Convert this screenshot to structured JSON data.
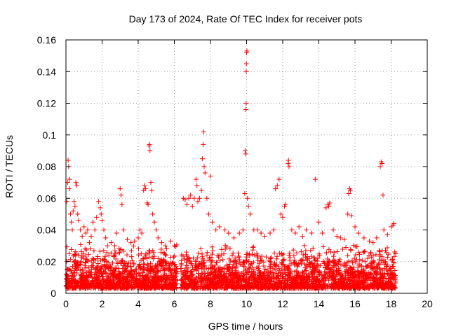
{
  "chart_data": {
    "type": "scatter",
    "title": "Day 173 of 2024, Rate Of TEC Index for receiver pots",
    "xlabel": "GPS time / hours",
    "ylabel": "ROTI / TECUs",
    "xlim": [
      0,
      20
    ],
    "ylim": [
      0,
      0.16
    ],
    "x_ticks": [
      0,
      2,
      4,
      6,
      8,
      10,
      12,
      14,
      16,
      18,
      20
    ],
    "y_ticks": [
      0,
      0.02,
      0.04,
      0.06,
      0.08,
      0.1,
      0.12,
      0.14,
      0.16
    ],
    "x_tick_labels": [
      "0",
      "2",
      "4",
      "6",
      "8",
      "10",
      "12",
      "14",
      "16",
      "18",
      "20"
    ],
    "y_tick_labels": [
      "0",
      "0.02",
      "0.04",
      "0.06",
      "0.08",
      "0.1",
      "0.12",
      "0.14",
      "0.16"
    ],
    "grid": true,
    "marker": "+",
    "color": "#ff0000",
    "data_gap_hours": [
      6.15,
      6.35
    ],
    "dense_band": {
      "x_range": [
        0,
        18.25
      ],
      "y_range": [
        0.003,
        0.03
      ]
    },
    "series": [
      {
        "name": "ROTI",
        "points": [
          [
            0.05,
            0.058
          ],
          [
            0.1,
            0.07
          ],
          [
            0.12,
            0.084
          ],
          [
            0.15,
            0.08
          ],
          [
            0.18,
            0.066
          ],
          [
            0.2,
            0.072
          ],
          [
            0.25,
            0.05
          ],
          [
            0.3,
            0.045
          ],
          [
            0.35,
            0.04
          ],
          [
            0.4,
            0.052
          ],
          [
            0.45,
            0.058
          ],
          [
            0.5,
            0.055
          ],
          [
            0.55,
            0.07
          ],
          [
            0.6,
            0.068
          ],
          [
            0.65,
            0.05
          ],
          [
            0.7,
            0.046
          ],
          [
            0.8,
            0.04
          ],
          [
            0.9,
            0.036
          ],
          [
            1.0,
            0.042
          ],
          [
            1.1,
            0.038
          ],
          [
            1.2,
            0.04
          ],
          [
            1.3,
            0.032
          ],
          [
            1.4,
            0.036
          ],
          [
            1.5,
            0.045
          ],
          [
            1.6,
            0.04
          ],
          [
            1.7,
            0.048
          ],
          [
            1.8,
            0.058
          ],
          [
            1.9,
            0.054
          ],
          [
            1.95,
            0.05
          ],
          [
            2.0,
            0.046
          ],
          [
            2.1,
            0.04
          ],
          [
            2.2,
            0.035
          ],
          [
            2.3,
            0.03
          ],
          [
            2.5,
            0.032
          ],
          [
            2.7,
            0.03
          ],
          [
            2.8,
            0.038
          ],
          [
            3.0,
            0.066
          ],
          [
            3.05,
            0.062
          ],
          [
            3.1,
            0.056
          ],
          [
            3.2,
            0.04
          ],
          [
            3.4,
            0.034
          ],
          [
            3.6,
            0.032
          ],
          [
            3.8,
            0.033
          ],
          [
            4.0,
            0.035
          ],
          [
            4.1,
            0.04
          ],
          [
            4.2,
            0.038
          ],
          [
            4.3,
            0.065
          ],
          [
            4.35,
            0.068
          ],
          [
            4.4,
            0.066
          ],
          [
            4.5,
            0.057
          ],
          [
            4.55,
            0.056
          ],
          [
            4.6,
            0.093
          ],
          [
            4.62,
            0.094
          ],
          [
            4.65,
            0.09
          ],
          [
            4.7,
            0.07
          ],
          [
            4.75,
            0.065
          ],
          [
            4.8,
            0.05
          ],
          [
            4.9,
            0.045
          ],
          [
            5.0,
            0.04
          ],
          [
            5.1,
            0.035
          ],
          [
            5.3,
            0.032
          ],
          [
            5.5,
            0.03
          ],
          [
            5.8,
            0.033
          ],
          [
            6.0,
            0.03
          ],
          [
            6.5,
            0.06
          ],
          [
            6.6,
            0.059
          ],
          [
            6.7,
            0.056
          ],
          [
            6.8,
            0.06
          ],
          [
            6.9,
            0.062
          ],
          [
            7.0,
            0.055
          ],
          [
            7.1,
            0.06
          ],
          [
            7.2,
            0.072
          ],
          [
            7.25,
            0.068
          ],
          [
            7.3,
            0.058
          ],
          [
            7.4,
            0.06
          ],
          [
            7.5,
            0.065
          ],
          [
            7.55,
            0.085
          ],
          [
            7.6,
            0.094
          ],
          [
            7.62,
            0.102
          ],
          [
            7.65,
            0.08
          ],
          [
            7.7,
            0.076
          ],
          [
            7.8,
            0.06
          ],
          [
            7.9,
            0.05
          ],
          [
            8.0,
            0.074
          ],
          [
            8.1,
            0.045
          ],
          [
            8.3,
            0.04
          ],
          [
            8.5,
            0.042
          ],
          [
            8.8,
            0.04
          ],
          [
            9.0,
            0.038
          ],
          [
            9.3,
            0.035
          ],
          [
            9.6,
            0.038
          ],
          [
            9.8,
            0.04
          ],
          [
            9.9,
            0.063
          ],
          [
            9.92,
            0.09
          ],
          [
            9.95,
            0.088
          ],
          [
            9.96,
            0.116
          ],
          [
            9.97,
            0.12
          ],
          [
            9.98,
            0.14
          ],
          [
            9.99,
            0.145
          ],
          [
            10.0,
            0.152
          ],
          [
            10.02,
            0.153
          ],
          [
            10.05,
            0.06
          ],
          [
            10.1,
            0.055
          ],
          [
            10.2,
            0.05
          ],
          [
            10.4,
            0.04
          ],
          [
            10.6,
            0.04
          ],
          [
            10.8,
            0.038
          ],
          [
            11.0,
            0.036
          ],
          [
            11.3,
            0.038
          ],
          [
            11.5,
            0.04
          ],
          [
            11.6,
            0.066
          ],
          [
            11.7,
            0.068
          ],
          [
            11.8,
            0.072
          ],
          [
            11.9,
            0.05
          ],
          [
            12.0,
            0.048
          ],
          [
            12.1,
            0.055
          ],
          [
            12.15,
            0.056
          ],
          [
            12.3,
            0.082
          ],
          [
            12.32,
            0.084
          ],
          [
            12.35,
            0.08
          ],
          [
            12.5,
            0.04
          ],
          [
            12.7,
            0.038
          ],
          [
            12.9,
            0.042
          ],
          [
            13.1,
            0.036
          ],
          [
            13.3,
            0.04
          ],
          [
            13.6,
            0.038
          ],
          [
            13.8,
            0.072
          ],
          [
            14.0,
            0.045
          ],
          [
            14.2,
            0.038
          ],
          [
            14.4,
            0.054
          ],
          [
            14.5,
            0.056
          ],
          [
            14.55,
            0.055
          ],
          [
            14.6,
            0.057
          ],
          [
            14.8,
            0.04
          ],
          [
            15.0,
            0.036
          ],
          [
            15.2,
            0.035
          ],
          [
            15.4,
            0.034
          ],
          [
            15.6,
            0.05
          ],
          [
            15.65,
            0.063
          ],
          [
            15.7,
            0.066
          ],
          [
            15.75,
            0.065
          ],
          [
            15.8,
            0.049
          ],
          [
            16.0,
            0.042
          ],
          [
            16.2,
            0.038
          ],
          [
            16.5,
            0.035
          ],
          [
            16.8,
            0.033
          ],
          [
            17.0,
            0.032
          ],
          [
            17.2,
            0.035
          ],
          [
            17.4,
            0.08
          ],
          [
            17.45,
            0.083
          ],
          [
            17.5,
            0.082
          ],
          [
            17.55,
            0.062
          ],
          [
            17.6,
            0.04
          ],
          [
            17.8,
            0.037
          ],
          [
            18.0,
            0.042
          ],
          [
            18.1,
            0.043
          ],
          [
            18.15,
            0.044
          ]
        ]
      }
    ]
  }
}
